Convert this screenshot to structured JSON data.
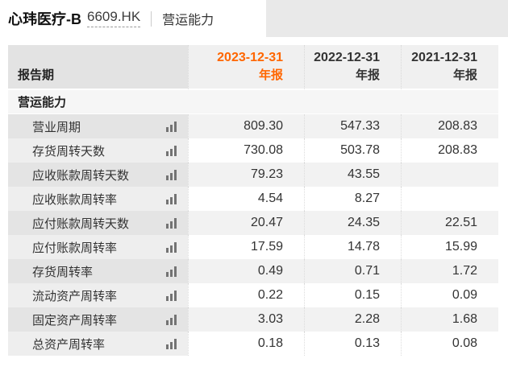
{
  "header": {
    "stock_name": "心玮医疗-B",
    "stock_code": "6609.HK",
    "page_title": "营运能力"
  },
  "colors": {
    "accent_orange": "#ff6600",
    "top_panel_gray": "#e9e9e9"
  },
  "table": {
    "row_header_label": "报告期",
    "section_label": "营运能力",
    "columns": [
      {
        "date": "2023-12-31",
        "type": "年报",
        "selected": true
      },
      {
        "date": "2022-12-31",
        "type": "年报",
        "selected": false
      },
      {
        "date": "2021-12-31",
        "type": "年报",
        "selected": false
      }
    ],
    "rows": [
      {
        "label": "营业周期",
        "values": [
          "809.30",
          "547.33",
          "208.83"
        ]
      },
      {
        "label": "存货周转天数",
        "values": [
          "730.08",
          "503.78",
          "208.83"
        ]
      },
      {
        "label": "应收账款周转天数",
        "values": [
          "79.23",
          "43.55",
          ""
        ]
      },
      {
        "label": "应收账款周转率",
        "values": [
          "4.54",
          "8.27",
          ""
        ]
      },
      {
        "label": "应付账款周转天数",
        "values": [
          "20.47",
          "24.35",
          "22.51"
        ]
      },
      {
        "label": "应付账款周转率",
        "values": [
          "17.59",
          "14.78",
          "15.99"
        ]
      },
      {
        "label": "存货周转率",
        "values": [
          "0.49",
          "0.71",
          "1.72"
        ]
      },
      {
        "label": "流动资产周转率",
        "values": [
          "0.22",
          "0.15",
          "0.09"
        ]
      },
      {
        "label": "固定资产周转率",
        "values": [
          "3.03",
          "2.28",
          "1.68"
        ]
      },
      {
        "label": "总资产周转率",
        "values": [
          "0.18",
          "0.13",
          "0.08"
        ]
      }
    ]
  }
}
